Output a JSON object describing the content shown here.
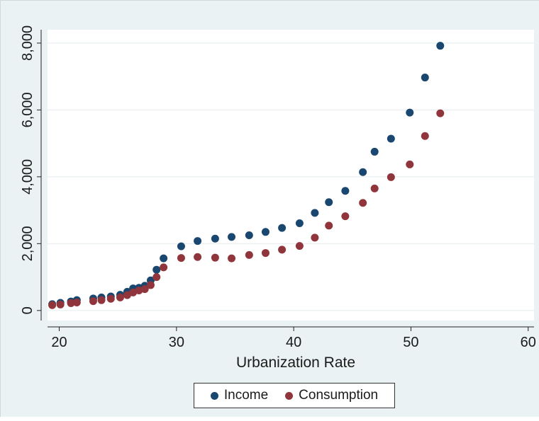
{
  "chart_data": {
    "type": "scatter",
    "xlabel": "Urbanization Rate",
    "ylabel": "",
    "xlim": [
      19,
      60.5
    ],
    "ylim": [
      -300,
      8400
    ],
    "x_ticks": [
      20,
      30,
      40,
      50,
      60
    ],
    "y_ticks": [
      0,
      2000,
      4000,
      6000,
      8000
    ],
    "x_tick_labels": [
      "20",
      "30",
      "40",
      "50",
      "60"
    ],
    "y_tick_labels": [
      "0",
      "2,000",
      "4,000",
      "6,000",
      "8,000"
    ],
    "grid": "horizontal",
    "legend_position": "bottom",
    "series": [
      {
        "name": "Income",
        "color": "#1a476f",
        "points": [
          [
            19.4,
            190
          ],
          [
            20.1,
            230
          ],
          [
            21.0,
            270
          ],
          [
            21.5,
            310
          ],
          [
            22.9,
            360
          ],
          [
            23.6,
            390
          ],
          [
            24.4,
            420
          ],
          [
            25.2,
            470
          ],
          [
            25.8,
            560
          ],
          [
            26.3,
            660
          ],
          [
            26.8,
            680
          ],
          [
            27.3,
            740
          ],
          [
            27.8,
            900
          ],
          [
            28.3,
            1220
          ],
          [
            28.9,
            1560
          ],
          [
            30.4,
            1920
          ],
          [
            31.8,
            2080
          ],
          [
            33.3,
            2150
          ],
          [
            34.7,
            2200
          ],
          [
            36.2,
            2250
          ],
          [
            37.6,
            2350
          ],
          [
            39.0,
            2470
          ],
          [
            40.5,
            2610
          ],
          [
            41.8,
            2920
          ],
          [
            43.0,
            3240
          ],
          [
            44.4,
            3580
          ],
          [
            45.9,
            4140
          ],
          [
            46.9,
            4750
          ],
          [
            48.3,
            5140
          ],
          [
            49.9,
            5920
          ],
          [
            51.2,
            6970
          ],
          [
            52.5,
            7920
          ]
        ]
      },
      {
        "name": "Consumption",
        "color": "#90353b",
        "points": [
          [
            19.4,
            160
          ],
          [
            20.1,
            180
          ],
          [
            21.0,
            220
          ],
          [
            21.5,
            240
          ],
          [
            22.9,
            280
          ],
          [
            23.6,
            310
          ],
          [
            24.4,
            350
          ],
          [
            25.2,
            390
          ],
          [
            25.8,
            460
          ],
          [
            26.3,
            540
          ],
          [
            26.8,
            600
          ],
          [
            27.3,
            640
          ],
          [
            27.8,
            760
          ],
          [
            28.3,
            1000
          ],
          [
            28.9,
            1290
          ],
          [
            30.4,
            1570
          ],
          [
            31.8,
            1600
          ],
          [
            33.3,
            1580
          ],
          [
            34.7,
            1560
          ],
          [
            36.2,
            1660
          ],
          [
            37.6,
            1720
          ],
          [
            39.0,
            1820
          ],
          [
            40.5,
            1930
          ],
          [
            41.8,
            2180
          ],
          [
            43.0,
            2540
          ],
          [
            44.4,
            2820
          ],
          [
            45.9,
            3220
          ],
          [
            46.9,
            3650
          ],
          [
            48.3,
            3990
          ],
          [
            49.9,
            4370
          ],
          [
            51.2,
            5220
          ],
          [
            52.5,
            5900
          ]
        ]
      }
    ]
  }
}
